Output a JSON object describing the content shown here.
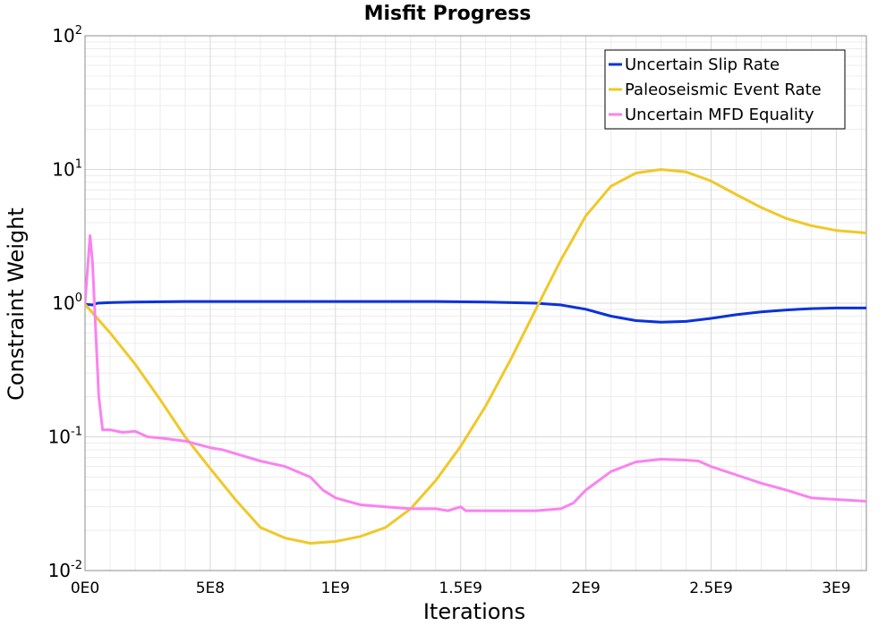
{
  "chart_data": {
    "type": "line",
    "title": "Misfit Progress",
    "xlabel": "Iterations",
    "ylabel": "Constraint Weight",
    "x_scale": "linear",
    "y_scale": "log",
    "xlim": [
      0,
      3120000000
    ],
    "ylim": [
      0.01,
      100
    ],
    "grid": true,
    "legend_position": "top-right",
    "x_ticks": [
      {
        "value": 0,
        "label": "0E0"
      },
      {
        "value": 500000000,
        "label": "5E8"
      },
      {
        "value": 1000000000,
        "label": "1E9"
      },
      {
        "value": 1500000000,
        "label": "1.5E9"
      },
      {
        "value": 2000000000,
        "label": "2E9"
      },
      {
        "value": 2500000000,
        "label": "2.5E9"
      },
      {
        "value": 3000000000,
        "label": "3E9"
      }
    ],
    "y_ticks": [
      {
        "value": 0.01,
        "base": "10",
        "exp": "-2"
      },
      {
        "value": 0.1,
        "base": "10",
        "exp": "-1"
      },
      {
        "value": 1,
        "base": "10",
        "exp": "0"
      },
      {
        "value": 10,
        "base": "10",
        "exp": "1"
      },
      {
        "value": 100,
        "base": "10",
        "exp": "2"
      }
    ],
    "series": [
      {
        "name": "Uncertain Slip Rate",
        "color": "#0a32dc",
        "points": [
          [
            0,
            0.98
          ],
          [
            30000000,
            0.97
          ],
          [
            50000000,
            1.0
          ],
          [
            100000000,
            1.01
          ],
          [
            200000000,
            1.02
          ],
          [
            400000000,
            1.03
          ],
          [
            600000000,
            1.03
          ],
          [
            800000000,
            1.03
          ],
          [
            1000000000,
            1.03
          ],
          [
            1200000000,
            1.03
          ],
          [
            1400000000,
            1.03
          ],
          [
            1600000000,
            1.02
          ],
          [
            1700000000,
            1.01
          ],
          [
            1800000000,
            1.0
          ],
          [
            1900000000,
            0.97
          ],
          [
            2000000000,
            0.9
          ],
          [
            2100000000,
            0.8
          ],
          [
            2200000000,
            0.74
          ],
          [
            2300000000,
            0.72
          ],
          [
            2400000000,
            0.73
          ],
          [
            2500000000,
            0.77
          ],
          [
            2600000000,
            0.82
          ],
          [
            2700000000,
            0.86
          ],
          [
            2800000000,
            0.89
          ],
          [
            2900000000,
            0.91
          ],
          [
            3000000000,
            0.92
          ],
          [
            3120000000,
            0.92
          ]
        ]
      },
      {
        "name": "Paleoseismic Event Rate",
        "color": "#f0c828",
        "points": [
          [
            0,
            0.98
          ],
          [
            100000000,
            0.6
          ],
          [
            200000000,
            0.35
          ],
          [
            300000000,
            0.19
          ],
          [
            400000000,
            0.1
          ],
          [
            500000000,
            0.058
          ],
          [
            600000000,
            0.034
          ],
          [
            700000000,
            0.021
          ],
          [
            800000000,
            0.0175
          ],
          [
            900000000,
            0.016
          ],
          [
            1000000000,
            0.0165
          ],
          [
            1100000000,
            0.018
          ],
          [
            1200000000,
            0.021
          ],
          [
            1300000000,
            0.029
          ],
          [
            1400000000,
            0.047
          ],
          [
            1500000000,
            0.085
          ],
          [
            1600000000,
            0.17
          ],
          [
            1700000000,
            0.38
          ],
          [
            1800000000,
            0.9
          ],
          [
            1900000000,
            2.1
          ],
          [
            2000000000,
            4.5
          ],
          [
            2100000000,
            7.5
          ],
          [
            2200000000,
            9.4
          ],
          [
            2300000000,
            10.0
          ],
          [
            2400000000,
            9.6
          ],
          [
            2500000000,
            8.2
          ],
          [
            2600000000,
            6.5
          ],
          [
            2700000000,
            5.2
          ],
          [
            2800000000,
            4.3
          ],
          [
            2900000000,
            3.8
          ],
          [
            3000000000,
            3.5
          ],
          [
            3120000000,
            3.35
          ]
        ]
      },
      {
        "name": "Uncertain MFD Equality",
        "color": "#fa82f0",
        "points": [
          [
            0,
            1.0
          ],
          [
            20000000,
            3.2
          ],
          [
            30000000,
            2.0
          ],
          [
            45000000,
            0.5
          ],
          [
            55000000,
            0.2
          ],
          [
            70000000,
            0.113
          ],
          [
            100000000,
            0.113
          ],
          [
            150000000,
            0.108
          ],
          [
            200000000,
            0.11
          ],
          [
            250000000,
            0.1
          ],
          [
            300000000,
            0.098
          ],
          [
            400000000,
            0.093
          ],
          [
            500000000,
            0.083
          ],
          [
            550000000,
            0.08
          ],
          [
            600000000,
            0.075
          ],
          [
            700000000,
            0.066
          ],
          [
            800000000,
            0.06
          ],
          [
            900000000,
            0.05
          ],
          [
            950000000,
            0.04
          ],
          [
            1000000000,
            0.035
          ],
          [
            1100000000,
            0.031
          ],
          [
            1200000000,
            0.03
          ],
          [
            1300000000,
            0.029
          ],
          [
            1400000000,
            0.029
          ],
          [
            1450000000,
            0.028
          ],
          [
            1500000000,
            0.03
          ],
          [
            1520000000,
            0.028
          ],
          [
            1600000000,
            0.028
          ],
          [
            1700000000,
            0.028
          ],
          [
            1800000000,
            0.028
          ],
          [
            1900000000,
            0.029
          ],
          [
            1950000000,
            0.032
          ],
          [
            2000000000,
            0.04
          ],
          [
            2100000000,
            0.055
          ],
          [
            2200000000,
            0.065
          ],
          [
            2300000000,
            0.068
          ],
          [
            2400000000,
            0.067
          ],
          [
            2450000000,
            0.066
          ],
          [
            2500000000,
            0.06
          ],
          [
            2600000000,
            0.052
          ],
          [
            2700000000,
            0.045
          ],
          [
            2800000000,
            0.04
          ],
          [
            2900000000,
            0.035
          ],
          [
            3000000000,
            0.034
          ],
          [
            3120000000,
            0.033
          ]
        ]
      }
    ]
  }
}
